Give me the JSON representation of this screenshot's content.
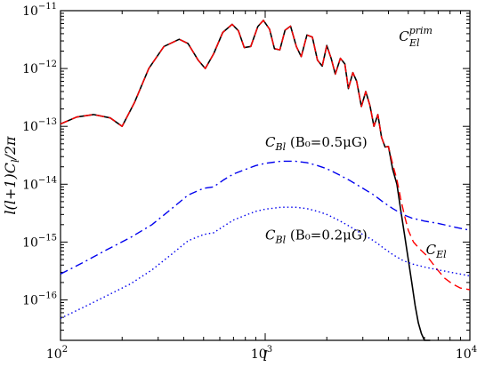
{
  "chart_data": {
    "type": "line",
    "title": "",
    "xlabel": "l",
    "ylabel": "l(l+1)C_l/2π",
    "x_scale": "log",
    "y_scale": "log",
    "xlim": [
      100,
      10000
    ],
    "ylim": [
      2e-17,
      1e-11
    ],
    "grid": false,
    "x_ticks": [
      {
        "value": 100,
        "mant": "10",
        "exp": "2"
      },
      {
        "value": 1000,
        "mant": "10",
        "exp": "3"
      },
      {
        "value": 10000,
        "mant": "10",
        "exp": "4"
      }
    ],
    "y_ticks": [
      {
        "value": 1e-16,
        "mant": "10",
        "exp": "−16"
      },
      {
        "value": 1e-15,
        "mant": "10",
        "exp": "−15"
      },
      {
        "value": 1e-14,
        "mant": "10",
        "exp": "−14"
      },
      {
        "value": 1e-13,
        "mant": "10",
        "exp": "−13"
      },
      {
        "value": 1e-12,
        "mant": "10",
        "exp": "−12"
      },
      {
        "value": 1e-11,
        "mant": "10",
        "exp": "−11"
      }
    ],
    "series": [
      {
        "name": "C_El^prim",
        "style": "solid",
        "color": "#000000",
        "x": [
          100,
          120,
          145,
          175,
          200,
          230,
          270,
          320,
          380,
          420,
          470,
          510,
          560,
          620,
          690,
          740,
          790,
          850,
          920,
          980,
          1050,
          1110,
          1180,
          1250,
          1330,
          1420,
          1500,
          1600,
          1700,
          1800,
          1900,
          2000,
          2100,
          2200,
          2330,
          2450,
          2550,
          2680,
          2800,
          2950,
          3100,
          3250,
          3400,
          3550,
          3700,
          3850,
          4000,
          4200,
          4400,
          4600,
          4800,
          5000,
          5200,
          5400,
          5600,
          5800,
          6000,
          6200,
          6400
        ],
        "y": [
          1.1e-13,
          1.45e-13,
          1.6e-13,
          1.4e-13,
          1e-13,
          2.6e-13,
          1e-12,
          2.4e-12,
          3.2e-12,
          2.7e-12,
          1.4e-12,
          1e-12,
          1.8e-12,
          4.2e-12,
          5.8e-12,
          4.5e-12,
          2.3e-12,
          2.4e-12,
          5.3e-12,
          6.8e-12,
          4.8e-12,
          2.2e-12,
          2.1e-12,
          4.6e-12,
          5.4e-12,
          2.4e-12,
          1.6e-12,
          3.8e-12,
          3.5e-12,
          1.4e-12,
          1.1e-12,
          2.5e-12,
          1.5e-12,
          8e-13,
          1.5e-12,
          1.2e-12,
          4.5e-13,
          8.5e-13,
          6e-13,
          2.2e-13,
          4e-13,
          2.3e-13,
          1e-13,
          1.6e-13,
          6.5e-14,
          4.4e-14,
          4.5e-14,
          1.8e-14,
          1e-14,
          3.5e-15,
          1.3e-15,
          5e-16,
          2e-16,
          8e-17,
          4e-17,
          2.6e-17,
          2e-17,
          2e-17,
          2e-17
        ]
      },
      {
        "name": "C_El",
        "style": "dashed",
        "color": "#ff0000",
        "x": [
          100,
          120,
          145,
          175,
          200,
          230,
          270,
          320,
          380,
          420,
          470,
          510,
          560,
          620,
          690,
          740,
          790,
          850,
          920,
          980,
          1050,
          1110,
          1180,
          1250,
          1330,
          1420,
          1500,
          1600,
          1700,
          1800,
          1900,
          2000,
          2100,
          2200,
          2330,
          2450,
          2550,
          2680,
          2800,
          2950,
          3100,
          3250,
          3400,
          3550,
          3700,
          3850,
          4000,
          4200,
          4400,
          4600,
          4800,
          5000,
          5300,
          5700,
          6100,
          6500,
          7000,
          7500,
          8200,
          9000,
          10000
        ],
        "y": [
          1.1e-13,
          1.45e-13,
          1.6e-13,
          1.4e-13,
          1e-13,
          2.6e-13,
          1e-12,
          2.4e-12,
          3.2e-12,
          2.7e-12,
          1.4e-12,
          1e-12,
          1.8e-12,
          4.2e-12,
          5.8e-12,
          4.5e-12,
          2.3e-12,
          2.4e-12,
          5.3e-12,
          6.8e-12,
          4.8e-12,
          2.2e-12,
          2.1e-12,
          4.6e-12,
          5.4e-12,
          2.4e-12,
          1.6e-12,
          3.8e-12,
          3.5e-12,
          1.4e-12,
          1.1e-12,
          2.5e-12,
          1.5e-12,
          8e-13,
          1.5e-12,
          1.2e-12,
          4.5e-13,
          8.5e-13,
          6e-13,
          2.2e-13,
          4e-13,
          2.3e-13,
          1e-13,
          1.6e-13,
          6.5e-14,
          4.4e-14,
          4.5e-14,
          2.2e-14,
          1.2e-14,
          5.5e-15,
          2.8e-15,
          1.6e-15,
          1e-15,
          7.5e-16,
          6e-16,
          4.5e-16,
          3.2e-16,
          2.4e-16,
          1.9e-16,
          1.6e-16,
          1.5e-16
        ]
      },
      {
        "name": "C_Bl (B_0=0.5μG)",
        "style": "dashdot",
        "color": "#0000ee",
        "x": [
          100,
          130,
          170,
          220,
          280,
          350,
          420,
          500,
          560,
          630,
          700,
          800,
          900,
          1000,
          1200,
          1400,
          1600,
          1800,
          2000,
          2300,
          2600,
          3000,
          3400,
          3800,
          4200,
          4700,
          5200,
          6000,
          7000,
          8500,
          10000
        ],
        "y": [
          2.8e-16,
          4.5e-16,
          7.5e-16,
          1.2e-15,
          2e-15,
          3.8e-15,
          6.5e-15,
          8.5e-15,
          9e-15,
          1.2e-14,
          1.5e-14,
          1.8e-14,
          2.1e-14,
          2.3e-14,
          2.5e-14,
          2.5e-14,
          2.35e-14,
          2.1e-14,
          1.85e-14,
          1.45e-14,
          1.15e-14,
          8.5e-15,
          6.5e-15,
          4.8e-15,
          3.8e-15,
          3e-15,
          2.6e-15,
          2.3e-15,
          2.1e-15,
          1.8e-15,
          1.6e-15
        ]
      },
      {
        "name": "C_Bl (B_0=0.2μG)",
        "style": "dotted",
        "color": "#0000ee",
        "x": [
          100,
          130,
          170,
          220,
          280,
          350,
          420,
          500,
          560,
          630,
          700,
          800,
          900,
          1000,
          1200,
          1400,
          1600,
          1800,
          2000,
          2300,
          2600,
          3000,
          3400,
          3800,
          4200,
          4700,
          5200,
          6000,
          7000,
          8500,
          10000
        ],
        "y": [
          4.8e-17,
          7.5e-17,
          1.2e-16,
          1.9e-16,
          3.3e-16,
          6.2e-16,
          1.05e-15,
          1.35e-15,
          1.45e-15,
          1.9e-15,
          2.4e-15,
          2.9e-15,
          3.4e-15,
          3.7e-15,
          4e-15,
          4e-15,
          3.8e-15,
          3.4e-15,
          3e-15,
          2.35e-15,
          1.85e-15,
          1.35e-15,
          1.05e-15,
          7.8e-16,
          6.1e-16,
          4.8e-16,
          4.2e-16,
          3.7e-16,
          3.3e-16,
          2.9e-16,
          2.6e-16
        ]
      }
    ],
    "annotations": [
      {
        "key": "cel_prim",
        "base": "C",
        "sub": "El",
        "sup": "prim",
        "suffix": "",
        "x": 4500,
        "y": 3e-12
      },
      {
        "key": "cbl_05",
        "base": "C",
        "sub": "Bl",
        "sup": "",
        "suffix": " (B₀=0.5μG)",
        "x": 1000,
        "y": 4.5e-14
      },
      {
        "key": "cbl_02",
        "base": "C",
        "sub": "Bl",
        "sup": "",
        "suffix": " (B₀=0.2μG)",
        "x": 1000,
        "y": 1.1e-15
      },
      {
        "key": "cel",
        "base": "C",
        "sub": "El",
        "sup": "",
        "suffix": "",
        "x": 6100,
        "y": 6.2e-16
      }
    ]
  }
}
